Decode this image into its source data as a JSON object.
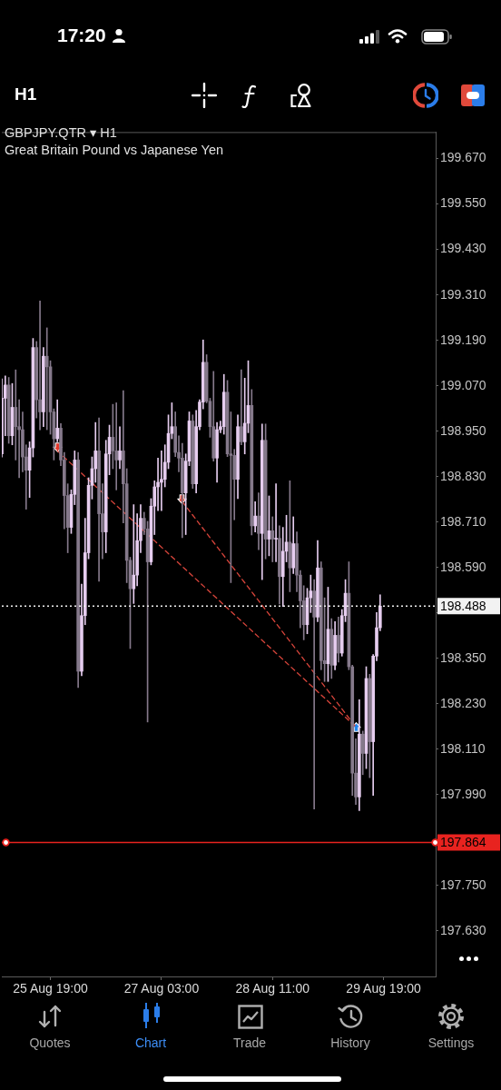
{
  "chart_data": {
    "type": "candlestick",
    "title": "GBPJPY.QTR ▾ H1",
    "subtitle": "Great Britain Pound vs Japanese Yen",
    "categories": [
      null,
      null,
      null,
      null,
      null,
      null,
      null,
      null,
      null,
      null,
      null,
      null,
      null,
      null,
      "25 Aug 19:00",
      null,
      null,
      null,
      null,
      null,
      null,
      null,
      null,
      null,
      null,
      null,
      null,
      null,
      null,
      null,
      null,
      null,
      null,
      null,
      null,
      null,
      null,
      null,
      null,
      null,
      null,
      null,
      null,
      null,
      null,
      null,
      "27 Aug 03:00",
      null,
      null,
      null,
      null,
      null,
      null,
      null,
      null,
      null,
      null,
      null,
      null,
      null,
      null,
      null,
      null,
      null,
      null,
      null,
      null,
      null,
      null,
      null,
      null,
      null,
      null,
      null,
      null,
      null,
      null,
      null,
      "28 Aug 11:00",
      null,
      null,
      null,
      null,
      null,
      null,
      null,
      null,
      null,
      null,
      null,
      null,
      null,
      null,
      null,
      null,
      null,
      null,
      null,
      null,
      null,
      null,
      null,
      null,
      null,
      null,
      null,
      null,
      null,
      null,
      null,
      "29 Aug 19:00",
      null,
      null,
      null,
      null,
      null,
      null,
      null,
      null,
      null,
      null,
      null,
      null,
      null,
      null,
      null
    ],
    "ohlc": [
      [
        198.89,
        199.088,
        198.882,
        199.037
      ],
      [
        199.037,
        199.096,
        198.938,
        199.072
      ],
      [
        199.072,
        199.092,
        198.918,
        198.938
      ],
      [
        198.938,
        199.076,
        198.914,
        199.013
      ],
      [
        199.013,
        199.112,
        198.874,
        198.962
      ],
      [
        198.962,
        199.033,
        198.827,
        198.954
      ],
      [
        198.954,
        199.001,
        198.843,
        198.882
      ],
      [
        198.882,
        198.914,
        198.744,
        198.847
      ],
      [
        198.847,
        198.922,
        198.775,
        198.906
      ],
      [
        198.906,
        199.195,
        198.882,
        199.171
      ],
      [
        199.171,
        199.187,
        198.985,
        199.033
      ],
      [
        199.033,
        199.294,
        198.954,
        199.001
      ],
      [
        199.001,
        199.171,
        198.962,
        199.148
      ],
      [
        199.148,
        199.223,
        198.954,
        199.12
      ],
      [
        199.12,
        199.136,
        198.942,
        199.001
      ],
      [
        199.001,
        199.009,
        198.874,
        198.93
      ],
      [
        198.93,
        199.033,
        198.922,
        198.958
      ],
      [
        198.958,
        198.97,
        198.859,
        198.874
      ],
      [
        198.874,
        198.894,
        198.692,
        198.78
      ],
      [
        198.78,
        198.811,
        198.629,
        198.696
      ],
      [
        198.696,
        198.795,
        198.68,
        198.783
      ],
      [
        198.783,
        198.898,
        198.756,
        198.874
      ],
      [
        198.874,
        198.894,
        198.273,
        198.316
      ],
      [
        198.316,
        198.546,
        198.304,
        198.463
      ],
      [
        198.463,
        198.72,
        198.439,
        198.629
      ],
      [
        198.629,
        198.827,
        198.613,
        198.807
      ],
      [
        198.807,
        198.882,
        198.771,
        198.851
      ],
      [
        198.851,
        198.973,
        198.815,
        198.898
      ],
      [
        198.898,
        198.985,
        198.554,
        198.732
      ],
      [
        198.732,
        198.811,
        198.613,
        198.684
      ],
      [
        198.684,
        198.926,
        198.629,
        198.89
      ],
      [
        198.89,
        198.966,
        198.835,
        198.934
      ],
      [
        198.934,
        199.021,
        198.851,
        198.898
      ],
      [
        198.898,
        199.025,
        198.795,
        198.874
      ],
      [
        198.874,
        198.962,
        198.851,
        198.898
      ],
      [
        198.898,
        199.057,
        198.708,
        198.811
      ],
      [
        198.811,
        198.851,
        198.55,
        198.609
      ],
      [
        198.609,
        198.617,
        198.376,
        198.534
      ],
      [
        198.534,
        198.756,
        198.495,
        198.57
      ],
      [
        198.57,
        198.732,
        198.542,
        198.661
      ],
      [
        198.661,
        198.756,
        198.629,
        198.72
      ],
      [
        198.72,
        198.736,
        198.677,
        198.692
      ],
      [
        198.692,
        198.712,
        198.182,
        198.605
      ],
      [
        198.605,
        198.772,
        198.597,
        198.752
      ],
      [
        198.752,
        198.819,
        198.677,
        198.803
      ],
      [
        198.803,
        198.879,
        198.74,
        198.815
      ],
      [
        198.815,
        198.898,
        198.74,
        198.823
      ],
      [
        198.823,
        198.914,
        198.803,
        198.868
      ],
      [
        198.868,
        198.993,
        198.851,
        198.944
      ],
      [
        198.944,
        199.025,
        198.93,
        198.962
      ],
      [
        198.962,
        199.001,
        198.883,
        198.894
      ],
      [
        198.894,
        198.938,
        198.843,
        198.879
      ],
      [
        198.879,
        198.918,
        198.669,
        198.787
      ],
      [
        198.787,
        198.89,
        198.677,
        198.871
      ],
      [
        198.871,
        199.001,
        198.859,
        198.977
      ],
      [
        198.977,
        198.993,
        198.799,
        198.811
      ],
      [
        198.811,
        199.005,
        198.787,
        198.962
      ],
      [
        198.962,
        199.033,
        198.954,
        199.027
      ],
      [
        199.027,
        199.191,
        199.009,
        199.132
      ],
      [
        199.132,
        199.152,
        199.025,
        199.029
      ],
      [
        199.029,
        199.037,
        198.934,
        198.962
      ],
      [
        198.962,
        199.108,
        198.871,
        198.879
      ],
      [
        198.879,
        198.973,
        198.815,
        198.954
      ],
      [
        198.954,
        198.977,
        198.946,
        198.962
      ],
      [
        198.962,
        199.1,
        198.942,
        199.053
      ],
      [
        199.053,
        199.084,
        198.883,
        198.89
      ],
      [
        198.89,
        199.001,
        198.55,
        198.886
      ],
      [
        198.886,
        198.902,
        198.716,
        198.823
      ],
      [
        198.823,
        198.993,
        198.772,
        198.962
      ],
      [
        198.962,
        199.112,
        198.914,
        198.922
      ],
      [
        198.922,
        199.09,
        198.89,
        198.971
      ],
      [
        198.971,
        199.136,
        198.946,
        199.018
      ],
      [
        199.018,
        199.06,
        198.676,
        198.7
      ],
      [
        198.7,
        198.764,
        198.684,
        198.726
      ],
      [
        198.726,
        198.787,
        198.637,
        198.68
      ],
      [
        198.68,
        198.969,
        198.558,
        198.926
      ],
      [
        198.926,
        198.969,
        198.613,
        198.665
      ],
      [
        198.665,
        198.779,
        198.621,
        198.687
      ],
      [
        198.687,
        198.724,
        198.605,
        198.665
      ],
      [
        198.665,
        198.811,
        198.605,
        198.667
      ],
      [
        198.667,
        198.7,
        198.494,
        198.566
      ],
      [
        198.566,
        198.696,
        198.487,
        198.633
      ],
      [
        198.633,
        198.728,
        198.605,
        198.657
      ],
      [
        198.657,
        198.819,
        198.526,
        198.589
      ],
      [
        198.589,
        198.724,
        198.574,
        198.653
      ],
      [
        198.653,
        198.684,
        198.526,
        198.57
      ],
      [
        198.57,
        198.582,
        198.431,
        198.502
      ],
      [
        198.502,
        198.542,
        198.399,
        198.439
      ],
      [
        198.439,
        198.535,
        198.415,
        198.51
      ],
      [
        198.51,
        198.57,
        198.471,
        198.528
      ],
      [
        198.528,
        198.558,
        197.952,
        198.459
      ],
      [
        198.459,
        198.661,
        198.447,
        198.589
      ],
      [
        198.589,
        198.605,
        198.32,
        198.344
      ],
      [
        198.344,
        198.51,
        198.289,
        198.336
      ],
      [
        198.336,
        198.538,
        198.289,
        198.427
      ],
      [
        198.427,
        198.455,
        198.297,
        198.332
      ],
      [
        198.332,
        198.447,
        198.32,
        198.411
      ],
      [
        198.411,
        198.459,
        198.34,
        198.364
      ],
      [
        198.364,
        198.479,
        198.356,
        198.463
      ],
      [
        198.463,
        198.558,
        198.447,
        198.522
      ],
      [
        198.522,
        198.605,
        198.32,
        198.328
      ],
      [
        198.328,
        198.332,
        197.988,
        198.047
      ],
      [
        198.047,
        198.138,
        197.964,
        197.984
      ],
      [
        197.984,
        198.241,
        197.948,
        198.15
      ],
      [
        198.15,
        198.158,
        198.043,
        198.099
      ],
      [
        198.099,
        198.328,
        198.059,
        198.297
      ],
      [
        198.297,
        198.308,
        198.035,
        198.13
      ],
      [
        198.13,
        198.36,
        197.988,
        198.356
      ],
      [
        198.356,
        198.471,
        198.344,
        198.431
      ],
      [
        198.431,
        198.518,
        198.423,
        198.488
      ],
      null,
      null,
      null,
      null,
      null,
      null,
      null,
      null,
      null,
      null,
      null,
      null,
      null,
      null,
      null,
      null
    ],
    "colors": [
      "#e6cdef",
      "#e6cdef",
      "#85798b",
      "#e6cdef",
      "#85798b",
      "#85798b",
      "#85798b",
      "#85798b",
      "#e6cdef",
      "#e6cdef",
      "#85798b",
      "#85798b",
      "#e6cdef",
      "#85798b",
      "#85798b",
      "#85798b",
      "#e6cdef",
      "#85798b",
      "#85798b",
      "#85798b",
      "#e6cdef",
      "#e6cdef",
      "#85798b",
      "#e6cdef",
      "#e6cdef",
      "#e6cdef",
      "#e6cdef",
      "#e6cdef",
      "#85798b",
      "#85798b",
      "#e6cdef",
      "#e6cdef",
      "#85798b",
      "#85798b",
      "#e6cdef",
      "#85798b",
      "#85798b",
      "#85798b",
      "#e6cdef",
      "#e6cdef",
      "#e6cdef",
      "#85798b",
      "#85798b",
      "#e6cdef",
      "#e6cdef",
      "#e6cdef",
      "#e6cdef",
      "#e6cdef",
      "#e6cdef",
      "#e6cdef",
      "#85798b",
      "#85798b",
      "#85798b",
      "#e6cdef",
      "#e6cdef",
      "#85798b",
      "#e6cdef",
      "#e6cdef",
      "#e6cdef",
      "#85798b",
      "#85798b",
      "#85798b",
      "#e6cdef",
      "#e6cdef",
      "#e6cdef",
      "#85798b",
      "#85798b",
      "#85798b",
      "#e6cdef",
      "#85798b",
      "#e6cdef",
      "#e6cdef",
      "#85798b",
      "#e6cdef",
      "#85798b",
      "#e6cdef",
      "#85798b",
      "#e6cdef",
      "#85798b",
      "#e6cdef",
      "#85798b",
      "#e6cdef",
      "#e6cdef",
      "#85798b",
      "#e6cdef",
      "#85798b",
      "#85798b",
      "#85798b",
      "#e6cdef",
      "#e6cdef",
      "#85798b",
      "#e6cdef",
      "#85798b",
      "#85798b",
      "#e6cdef",
      "#85798b",
      "#e6cdef",
      "#85798b",
      "#e6cdef",
      "#e6cdef",
      "#85798b",
      "#85798b",
      "#85798b",
      "#e6cdef",
      "#85798b",
      "#e6cdef",
      "#85798b",
      "#e6cdef",
      "#e6cdef",
      "#e6cdef",
      null,
      null,
      null,
      null,
      null,
      null,
      null,
      null,
      null,
      null,
      null,
      null,
      null,
      null,
      null,
      null
    ],
    "series": [
      {
        "type": "line",
        "color": "#d9453b",
        "line_style": "dashed",
        "marker": "triangle",
        "values": [
          null,
          null,
          null,
          null,
          null,
          null,
          null,
          null,
          null,
          null,
          null,
          null,
          null,
          null,
          null,
          null,
          198.898,
          null,
          null,
          null,
          null,
          null,
          null,
          null,
          null,
          null,
          null,
          null,
          null,
          null,
          null,
          null,
          null,
          null,
          null,
          null,
          null,
          null,
          null,
          null,
          null,
          null,
          null,
          null,
          null,
          null,
          null,
          null,
          null,
          null,
          null,
          null,
          null,
          null,
          null,
          null,
          null,
          null,
          null,
          null,
          null,
          null,
          null,
          null,
          null,
          null,
          null,
          null,
          null,
          null,
          null,
          null,
          null,
          null,
          null,
          null,
          null,
          null,
          null,
          null,
          null,
          null,
          null,
          null,
          null,
          null,
          null,
          null,
          null,
          null,
          null,
          null,
          null,
          null,
          null,
          null,
          null,
          null,
          null,
          null,
          null,
          null,
          198.169,
          null,
          null,
          null,
          null,
          null,
          null,
          null,
          null,
          null,
          null,
          null,
          null,
          null,
          null,
          null,
          null,
          null,
          null,
          null,
          null,
          null,
          null,
          null
        ]
      },
      {
        "type": "line",
        "color": "#d9453b",
        "line_style": "dashed",
        "marker": "triangle",
        "values": [
          null,
          null,
          null,
          null,
          null,
          null,
          null,
          null,
          null,
          null,
          null,
          null,
          null,
          null,
          null,
          null,
          null,
          null,
          null,
          null,
          null,
          null,
          null,
          null,
          null,
          null,
          null,
          null,
          null,
          null,
          null,
          null,
          null,
          null,
          null,
          null,
          null,
          null,
          null,
          null,
          null,
          null,
          null,
          null,
          null,
          null,
          null,
          null,
          null,
          null,
          null,
          null,
          198.764,
          null,
          null,
          null,
          null,
          null,
          null,
          null,
          null,
          null,
          null,
          null,
          null,
          null,
          null,
          null,
          null,
          null,
          null,
          null,
          null,
          null,
          null,
          null,
          null,
          null,
          null,
          null,
          null,
          null,
          null,
          null,
          null,
          null,
          null,
          null,
          null,
          null,
          null,
          null,
          null,
          null,
          null,
          null,
          null,
          null,
          null,
          null,
          null,
          null,
          198.169,
          null,
          null,
          null,
          null,
          null,
          null,
          null,
          null,
          null,
          null,
          null,
          null,
          null,
          null,
          null,
          null,
          null,
          null,
          null,
          null,
          null,
          null,
          null
        ]
      }
    ],
    "ylim": [
      197.51,
      199.74
    ],
    "yticks": [
      {
        "value": 199.67,
        "label": "199.670"
      },
      {
        "value": 199.55,
        "label": "199.550"
      },
      {
        "value": 199.43,
        "label": "199.430"
      },
      {
        "value": 199.31,
        "label": "199.310"
      },
      {
        "value": 199.19,
        "label": "199.190"
      },
      {
        "value": 199.07,
        "label": "199.070"
      },
      {
        "value": 198.95,
        "label": "198.950"
      },
      {
        "value": 198.83,
        "label": "198.830"
      },
      {
        "value": 198.71,
        "label": "198.710"
      },
      {
        "value": 198.59,
        "label": "198.590"
      },
      {
        "value": 198.47,
        "label": null
      },
      {
        "value": 198.35,
        "label": "198.350"
      },
      {
        "value": 198.23,
        "label": "198.230"
      },
      {
        "value": 198.11,
        "label": "198.110"
      },
      {
        "value": 197.99,
        "label": "197.990"
      },
      {
        "value": 197.87,
        "label": null
      },
      {
        "value": 197.75,
        "label": "197.750"
      },
      {
        "value": 197.63,
        "label": "197.630"
      }
    ],
    "ref_lines": [
      {
        "axis": "y",
        "value": 198.488,
        "label": "198.488",
        "color": "#f2f2f2",
        "line_style": "dotted"
      },
      {
        "axis": "y",
        "value": 197.864,
        "label": "197.864",
        "color": "#e8231f",
        "line_style": "solid"
      }
    ],
    "annotations": [
      "17:20",
      "H1",
      "Quotes",
      "Chart",
      "Trade",
      "History",
      "Settings"
    ]
  }
}
